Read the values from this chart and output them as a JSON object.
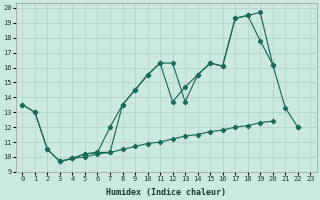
{
  "xlabel": "Humidex (Indice chaleur)",
  "ylabel": "",
  "xlim": [
    -0.5,
    23.5
  ],
  "ylim": [
    9,
    20.3
  ],
  "xticks": [
    0,
    1,
    2,
    3,
    4,
    5,
    6,
    7,
    8,
    9,
    10,
    11,
    12,
    13,
    14,
    15,
    16,
    17,
    18,
    19,
    20,
    21,
    22,
    23
  ],
  "yticks": [
    9,
    10,
    11,
    12,
    13,
    14,
    15,
    16,
    17,
    18,
    19,
    20
  ],
  "bg_color": "#cce9e1",
  "line_color": "#1a6b5a",
  "grid_color": "#b0d0c8",
  "line1_x": [
    0,
    1,
    2,
    3,
    4,
    5,
    6,
    7,
    8,
    9,
    10,
    11,
    12,
    13,
    14,
    15,
    16,
    17,
    18,
    19,
    20,
    21,
    22
  ],
  "line1_y": [
    13.5,
    13.0,
    10.5,
    9.7,
    9.9,
    10.2,
    10.3,
    10.3,
    13.5,
    14.5,
    15.5,
    16.3,
    13.7,
    14.7,
    15.5,
    16.3,
    16.1,
    19.3,
    19.5,
    17.8,
    16.2,
    13.3,
    12.0
  ],
  "line2_x": [
    0,
    1,
    2,
    3,
    4,
    5,
    6,
    7,
    8,
    9,
    10,
    11,
    12,
    13,
    14,
    15,
    16,
    17,
    18,
    19,
    20
  ],
  "line2_y": [
    13.5,
    13.0,
    10.5,
    9.7,
    9.9,
    10.2,
    10.3,
    12.0,
    13.5,
    14.5,
    15.5,
    16.3,
    16.3,
    13.7,
    15.5,
    16.3,
    16.1,
    19.3,
    19.5,
    19.7,
    16.2
  ],
  "line3_x": [
    3,
    4,
    5,
    6,
    7,
    8,
    9,
    10,
    11,
    12,
    13,
    14,
    15,
    16,
    17,
    18,
    19,
    20,
    22
  ],
  "line3_y": [
    9.7,
    9.9,
    10.0,
    10.2,
    10.3,
    10.5,
    10.7,
    10.9,
    11.0,
    11.2,
    11.4,
    11.5,
    11.7,
    11.8,
    12.0,
    12.1,
    12.3,
    12.4,
    12.0
  ]
}
